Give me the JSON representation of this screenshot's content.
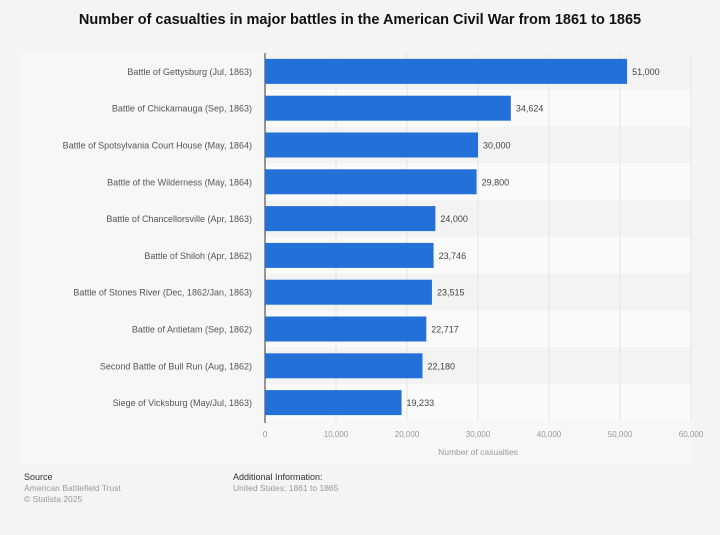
{
  "chart_data": {
    "type": "bar",
    "orientation": "horizontal",
    "title": "Number of casualties in major battles in the American Civil War from 1861 to 1865",
    "xlabel": "Number of casualties",
    "ylabel": "",
    "xlim": [
      0,
      60000
    ],
    "xticks": [
      0,
      10000,
      20000,
      30000,
      40000,
      50000,
      60000
    ],
    "xtick_labels": [
      "0",
      "10,000",
      "20,000",
      "30,000",
      "40,000",
      "50,000",
      "60,000"
    ],
    "grid": true,
    "categories": [
      "Battle of Gettysburg (Jul, 1863)",
      "Battle of Chickamauga (Sep, 1863)",
      "Battle of Spotsylvania Court House (May, 1864)",
      "Battle of the Wilderness (May, 1864)",
      "Battle of Chancellorsville (Apr, 1863)",
      "Battle of Shiloh (Apr, 1862)",
      "Battle of Stones River (Dec, 1862/Jan, 1863)",
      "Battle of Antietam (Sep, 1862)",
      "Second Battle of Bull Run (Aug, 1862)",
      "Siege of Vicksburg (May/Jul, 1863)"
    ],
    "values": [
      51000,
      34624,
      30000,
      29800,
      24000,
      23746,
      23515,
      22717,
      22180,
      19233
    ],
    "value_labels": [
      "51,000",
      "34,624",
      "30,000",
      "29,800",
      "24,000",
      "23,746",
      "23,515",
      "22,717",
      "22,180",
      "19,233"
    ],
    "bar_color": "#2370d8"
  },
  "footer": {
    "source_heading": "Source",
    "source_lines": [
      "American Battlefield Trust",
      "© Statista 2025"
    ],
    "additional_heading": "Additional Information:",
    "additional_lines": [
      "United States; 1861 to 1865"
    ]
  }
}
